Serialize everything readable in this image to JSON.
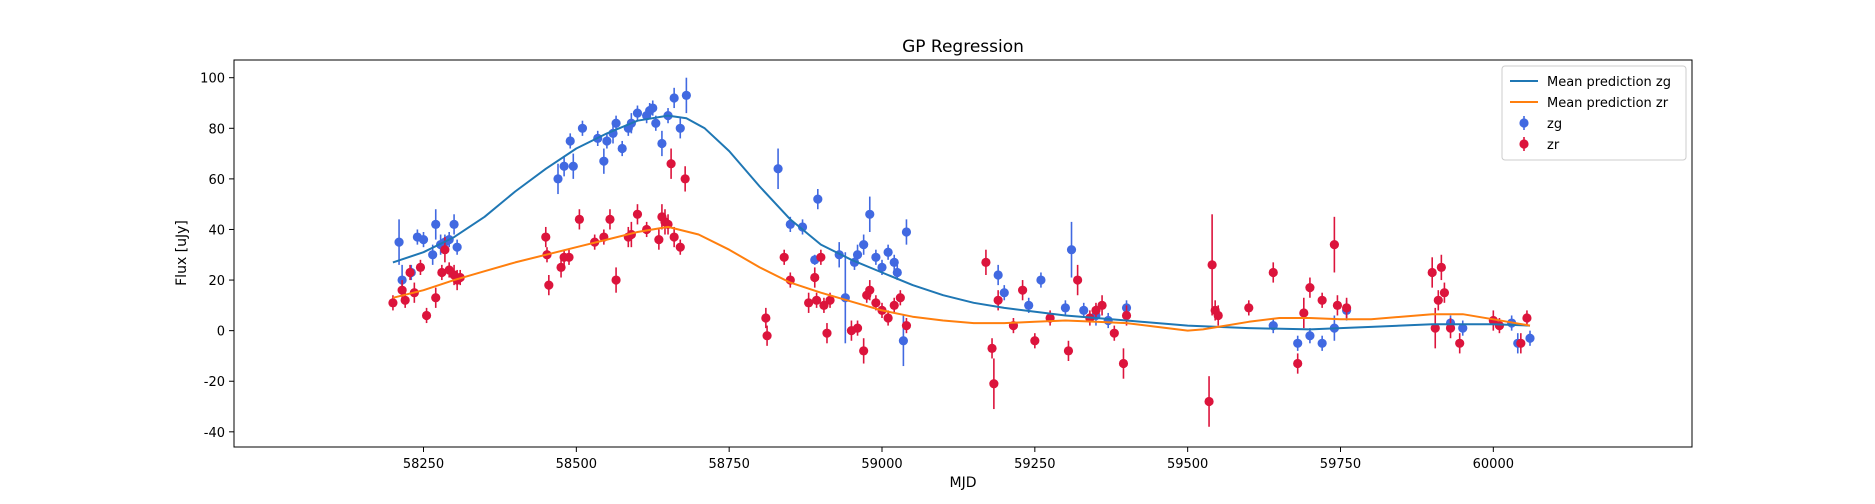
{
  "chart_data": {
    "type": "scatter",
    "title": "GP Regression",
    "xlabel": "MJD",
    "ylabel": "Flux [uJy]",
    "xlim": [
      57940,
      60325
    ],
    "ylim": [
      -46,
      107
    ],
    "xticks": [
      58250,
      58500,
      58750,
      59000,
      59250,
      59500,
      59750,
      60000
    ],
    "yticks": [
      -40,
      -20,
      0,
      20,
      40,
      60,
      80,
      100
    ],
    "grid": false,
    "legend_position": "top-right",
    "colors": {
      "mean_zg": "#1f77b4",
      "mean_zr": "#ff7f0e",
      "zg": "#4169e1",
      "zr": "#dc143c"
    },
    "legend": [
      {
        "label": "Mean prediction zg",
        "kind": "line",
        "series": "mean_zg"
      },
      {
        "label": "Mean prediction zr",
        "kind": "line",
        "series": "mean_zr"
      },
      {
        "label": "zg",
        "kind": "errorbar",
        "series": "zg"
      },
      {
        "label": "zr",
        "kind": "errorbar",
        "series": "zr"
      }
    ],
    "series": [
      {
        "name": "Mean prediction zg",
        "key": "mean_zg",
        "kind": "line",
        "x": [
          58200,
          58250,
          58300,
          58350,
          58400,
          58450,
          58500,
          58550,
          58600,
          58650,
          58680,
          58710,
          58750,
          58800,
          58850,
          58900,
          58950,
          59000,
          59050,
          59100,
          59150,
          59200,
          59300,
          59400,
          59500,
          59600,
          59700,
          59800,
          59900,
          60000,
          60060
        ],
        "y": [
          27,
          31,
          37,
          45,
          55,
          64,
          72,
          78,
          83,
          85,
          84,
          80,
          71,
          57,
          44,
          34,
          28,
          23,
          18,
          14,
          11,
          9,
          6,
          4,
          2,
          1,
          0.5,
          1.5,
          2.5,
          2.5,
          2
        ]
      },
      {
        "name": "Mean prediction zr",
        "key": "mean_zr",
        "kind": "line",
        "x": [
          58200,
          58250,
          58300,
          58350,
          58400,
          58450,
          58500,
          58550,
          58600,
          58650,
          58700,
          58750,
          58800,
          58850,
          58900,
          58950,
          59000,
          59050,
          59100,
          59150,
          59200,
          59250,
          59300,
          59350,
          59400,
          59450,
          59500,
          59525,
          59550,
          59600,
          59650,
          59700,
          59750,
          59800,
          59850,
          59900,
          59950,
          60000,
          60060
        ],
        "y": [
          13,
          16,
          20,
          23.5,
          27,
          30,
          33,
          36,
          39,
          41,
          38,
          32,
          25,
          19,
          15,
          11.5,
          8,
          5.5,
          4,
          3,
          3,
          3.5,
          4,
          3.5,
          3,
          1.5,
          0,
          0.5,
          1.5,
          3.5,
          5,
          5,
          4.5,
          4.5,
          5.5,
          6.5,
          6.5,
          4.5,
          2
        ]
      },
      {
        "name": "zg",
        "key": "zg",
        "kind": "errorbar",
        "x": [
          58210,
          58215,
          58230,
          58240,
          58250,
          58265,
          58270,
          58278,
          58285,
          58292,
          58300,
          58305,
          58470,
          58480,
          58490,
          58495,
          58510,
          58535,
          58545,
          58550,
          58560,
          58565,
          58575,
          58585,
          58590,
          58600,
          58615,
          58620,
          58625,
          58630,
          58640,
          58650,
          58660,
          58670,
          58680,
          58830,
          58850,
          58870,
          58890,
          58895,
          58930,
          58940,
          58955,
          58960,
          58970,
          58980,
          58990,
          59000,
          59010,
          59020,
          59025,
          59035,
          59040,
          59190,
          59200,
          59240,
          59260,
          59300,
          59310,
          59330,
          59350,
          59370,
          59400,
          59640,
          59680,
          59700,
          59720,
          59740,
          59760,
          59930,
          59950,
          60030,
          60040,
          60060
        ],
        "y": [
          35,
          20,
          23,
          37,
          36,
          30,
          42,
          34,
          35,
          36,
          42,
          33,
          60,
          65,
          75,
          65,
          80,
          76,
          67,
          75,
          78,
          82,
          72,
          80,
          82,
          86,
          85,
          87,
          88,
          82,
          74,
          85,
          92,
          80,
          93,
          64,
          42,
          41,
          28,
          52,
          30,
          13,
          27,
          30,
          34,
          46,
          29,
          25,
          31,
          27,
          23,
          -4,
          39,
          22,
          15,
          10,
          20,
          9,
          32,
          8,
          6,
          4,
          9,
          2,
          -5,
          -2,
          -5,
          1,
          8,
          3,
          1,
          3,
          -5,
          -3
        ],
        "yerr": [
          9,
          6,
          3,
          3,
          3,
          4,
          6,
          4,
          3,
          3,
          4,
          3,
          6,
          4,
          3,
          5,
          3,
          3,
          5,
          3,
          4,
          3,
          3,
          3,
          4,
          3,
          3,
          3,
          3,
          3,
          5,
          3,
          4,
          4,
          7,
          8,
          3,
          3,
          2,
          4,
          5,
          18,
          3,
          4,
          4,
          7,
          3,
          3,
          3,
          3,
          3,
          10,
          5,
          4,
          3,
          3,
          3,
          3,
          11,
          3,
          4,
          3,
          3,
          3,
          3,
          3,
          3,
          5,
          4,
          3,
          3,
          3,
          4,
          3
        ]
      },
      {
        "name": "zr",
        "key": "zr",
        "kind": "errorbar",
        "x": [
          58200,
          58215,
          58220,
          58228,
          58235,
          58245,
          58255,
          58270,
          58280,
          58285,
          58292,
          58300,
          58305,
          58310,
          58450,
          58452,
          58455,
          58475,
          58480,
          58488,
          58505,
          58530,
          58545,
          58555,
          58565,
          58585,
          58590,
          58600,
          58615,
          58635,
          58640,
          58645,
          58650,
          58655,
          58660,
          58670,
          58678,
          58810,
          58812,
          58840,
          58850,
          58880,
          58890,
          58893,
          58900,
          58905,
          58910,
          58915,
          58950,
          58960,
          58970,
          58975,
          58980,
          58990,
          59000,
          59010,
          59020,
          59030,
          59040,
          59170,
          59180,
          59183,
          59190,
          59215,
          59230,
          59250,
          59275,
          59305,
          59320,
          59340,
          59350,
          59360,
          59380,
          59395,
          59400,
          59535,
          59540,
          59545,
          59550,
          59600,
          59640,
          59680,
          59690,
          59700,
          59720,
          59740,
          59745,
          59760,
          59900,
          59905,
          59910,
          59915,
          59920,
          59930,
          59945,
          60000,
          60010,
          60045,
          60055
        ],
        "y": [
          11,
          16,
          12,
          23,
          15,
          25,
          6,
          13,
          23,
          32,
          24,
          22,
          20,
          21,
          37,
          30,
          18,
          25,
          29,
          29,
          44,
          35,
          37,
          44,
          20,
          37,
          38,
          46,
          40,
          36,
          45,
          43,
          42,
          66,
          37,
          33,
          60,
          5,
          -2,
          29,
          20,
          11,
          21,
          12,
          29,
          10,
          -1,
          12,
          0,
          1,
          -8,
          14,
          16,
          11,
          8,
          5,
          10,
          13,
          2,
          27,
          -7,
          -21,
          12,
          2,
          16,
          -4,
          5,
          -8,
          20,
          5,
          8,
          10,
          -1,
          -13,
          6,
          -28,
          26,
          8,
          6,
          9,
          23,
          -13,
          7,
          17,
          12,
          34,
          10,
          9,
          23,
          1,
          12,
          25,
          15,
          1,
          -5,
          4,
          2,
          -5,
          5
        ],
        "yerr": [
          3,
          4,
          3,
          3,
          4,
          3,
          3,
          4,
          3,
          5,
          3,
          4,
          4,
          3,
          4,
          3,
          4,
          4,
          3,
          3,
          4,
          3,
          3,
          4,
          5,
          4,
          5,
          4,
          3,
          4,
          5,
          5,
          4,
          6,
          4,
          3,
          5,
          4,
          4,
          3,
          3,
          4,
          4,
          3,
          3,
          3,
          4,
          3,
          4,
          3,
          5,
          3,
          4,
          3,
          3,
          3,
          3,
          3,
          3,
          5,
          4,
          10,
          4,
          3,
          4,
          3,
          3,
          4,
          6,
          3,
          3,
          4,
          3,
          6,
          4,
          10,
          20,
          4,
          4,
          3,
          4,
          4,
          6,
          4,
          3,
          11,
          4,
          4,
          6,
          8,
          4,
          5,
          4,
          4,
          4,
          4,
          3,
          4,
          3
        ]
      }
    ]
  }
}
